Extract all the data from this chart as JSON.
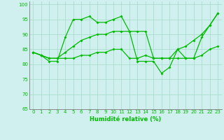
{
  "x": [
    0,
    1,
    2,
    3,
    4,
    5,
    6,
    7,
    8,
    9,
    10,
    11,
    12,
    13,
    14,
    15,
    16,
    17,
    18,
    19,
    20,
    21,
    22,
    23
  ],
  "line1": [
    84,
    83,
    81,
    81,
    89,
    95,
    95,
    96,
    94,
    94,
    95,
    96,
    91,
    81,
    81,
    81,
    77,
    79,
    85,
    82,
    82,
    89,
    93,
    97
  ],
  "line2": [
    84,
    83,
    82,
    82,
    82,
    82,
    83,
    83,
    84,
    84,
    85,
    85,
    82,
    82,
    83,
    82,
    82,
    82,
    82,
    82,
    82,
    83,
    85,
    86
  ],
  "line3": [
    84,
    83,
    82,
    82,
    84,
    86,
    88,
    89,
    90,
    90,
    91,
    91,
    91,
    91,
    91,
    82,
    82,
    82,
    85,
    86,
    88,
    90,
    93,
    97
  ],
  "line_color": "#00bb00",
  "bg_color": "#d0f0f0",
  "grid_color": "#aaddcc",
  "xlabel": "Humidité relative (%)",
  "xlim": [
    -0.5,
    23.5
  ],
  "ylim": [
    65,
    101
  ],
  "yticks": [
    65,
    70,
    75,
    80,
    85,
    90,
    95,
    100
  ],
  "xticks": [
    0,
    1,
    2,
    3,
    4,
    5,
    6,
    7,
    8,
    9,
    10,
    11,
    12,
    13,
    14,
    15,
    16,
    17,
    18,
    19,
    20,
    21,
    22,
    23
  ],
  "xtick_labels": [
    "0",
    "1",
    "2",
    "3",
    "4",
    "5",
    "6",
    "7",
    "8",
    "9",
    "10",
    "11",
    "12",
    "13",
    "14",
    "15",
    "16",
    "17",
    "18",
    "19",
    "20",
    "21",
    "22",
    "23"
  ]
}
